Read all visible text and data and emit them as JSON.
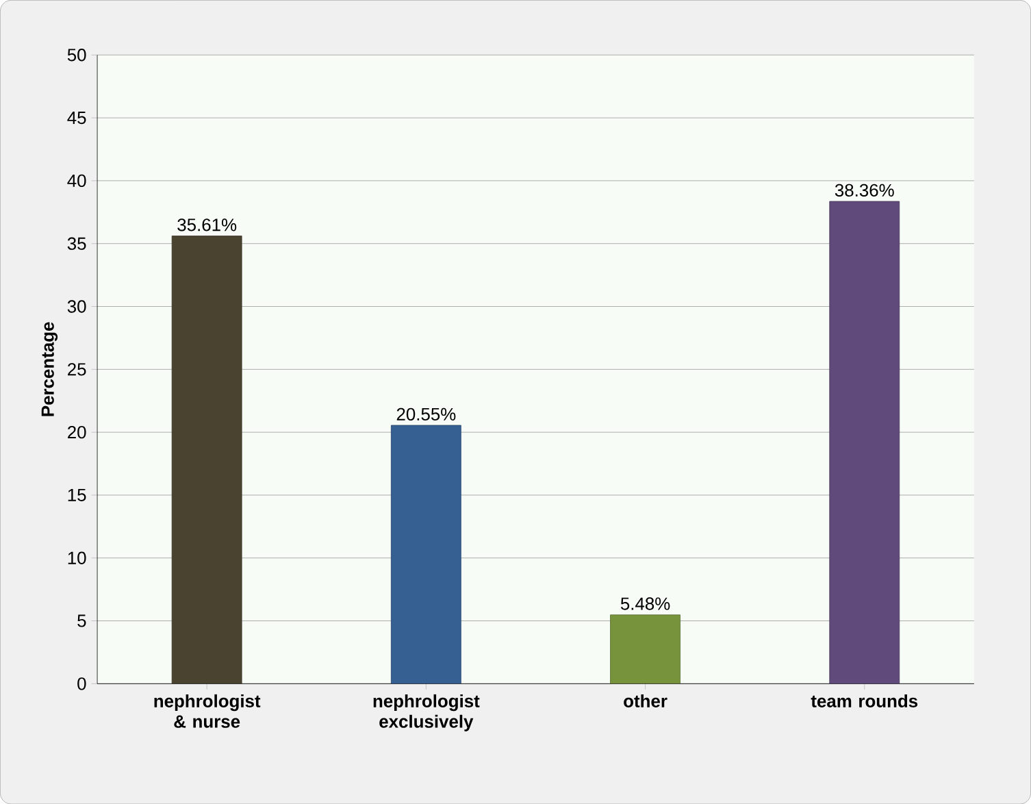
{
  "chart_data": {
    "type": "bar",
    "ylabel": "Percentage",
    "categories": [
      "nephrologist & nurse",
      "nephrologist exclusively",
      "other",
      "team rounds"
    ],
    "values": [
      35.61,
      20.55,
      5.48,
      38.36
    ],
    "colors": [
      "#4a4330",
      "#366092",
      "#77933c",
      "#604a7b"
    ],
    "value_labels": [
      "35.61%",
      "20.55%",
      "5.48%",
      "38.36%"
    ],
    "ylim": [
      0,
      50
    ],
    "yticks": [
      0,
      5,
      10,
      15,
      20,
      25,
      30,
      35,
      40,
      45,
      50
    ],
    "grid": "y"
  }
}
